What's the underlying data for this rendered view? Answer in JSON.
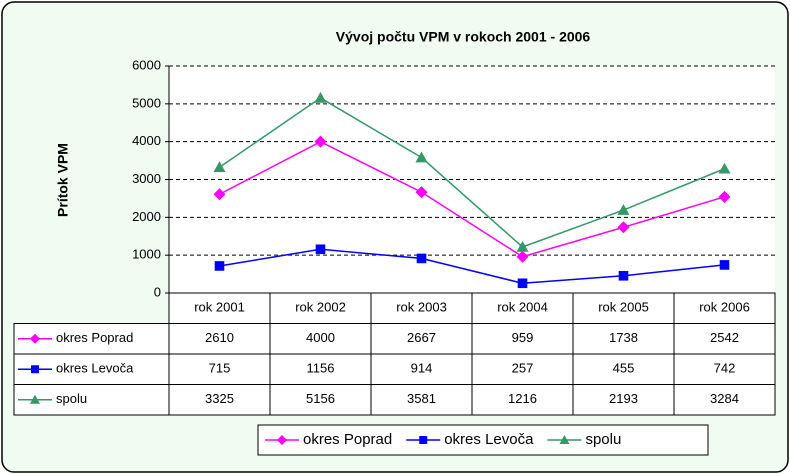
{
  "chart_data": {
    "type": "line",
    "title": "Vývoj počtu VPM v rokoch 2001 - 2006",
    "y_label": "Prítok VPM",
    "categories": [
      "rok 2001",
      "rok 2002",
      "rok 2003",
      "rok 2004",
      "rok 2005",
      "rok 2006"
    ],
    "series": [
      {
        "name": "okres Poprad",
        "color": "#ff00ff",
        "marker": "diamond",
        "values": [
          2610,
          4000,
          2667,
          959,
          1738,
          2542
        ]
      },
      {
        "name": "okres Levoča",
        "color": "#0000ff",
        "marker": "square",
        "values": [
          715,
          1156,
          914,
          257,
          455,
          742
        ]
      },
      {
        "name": "spolu",
        "color": "#339966",
        "marker": "triangle",
        "values": [
          3325,
          5156,
          3581,
          1216,
          2193,
          3284
        ]
      }
    ],
    "ylim": [
      0,
      6000
    ],
    "yticks": [
      0,
      1000,
      2000,
      3000,
      4000,
      5000,
      6000
    ],
    "grid": true,
    "legend": "bottom"
  }
}
